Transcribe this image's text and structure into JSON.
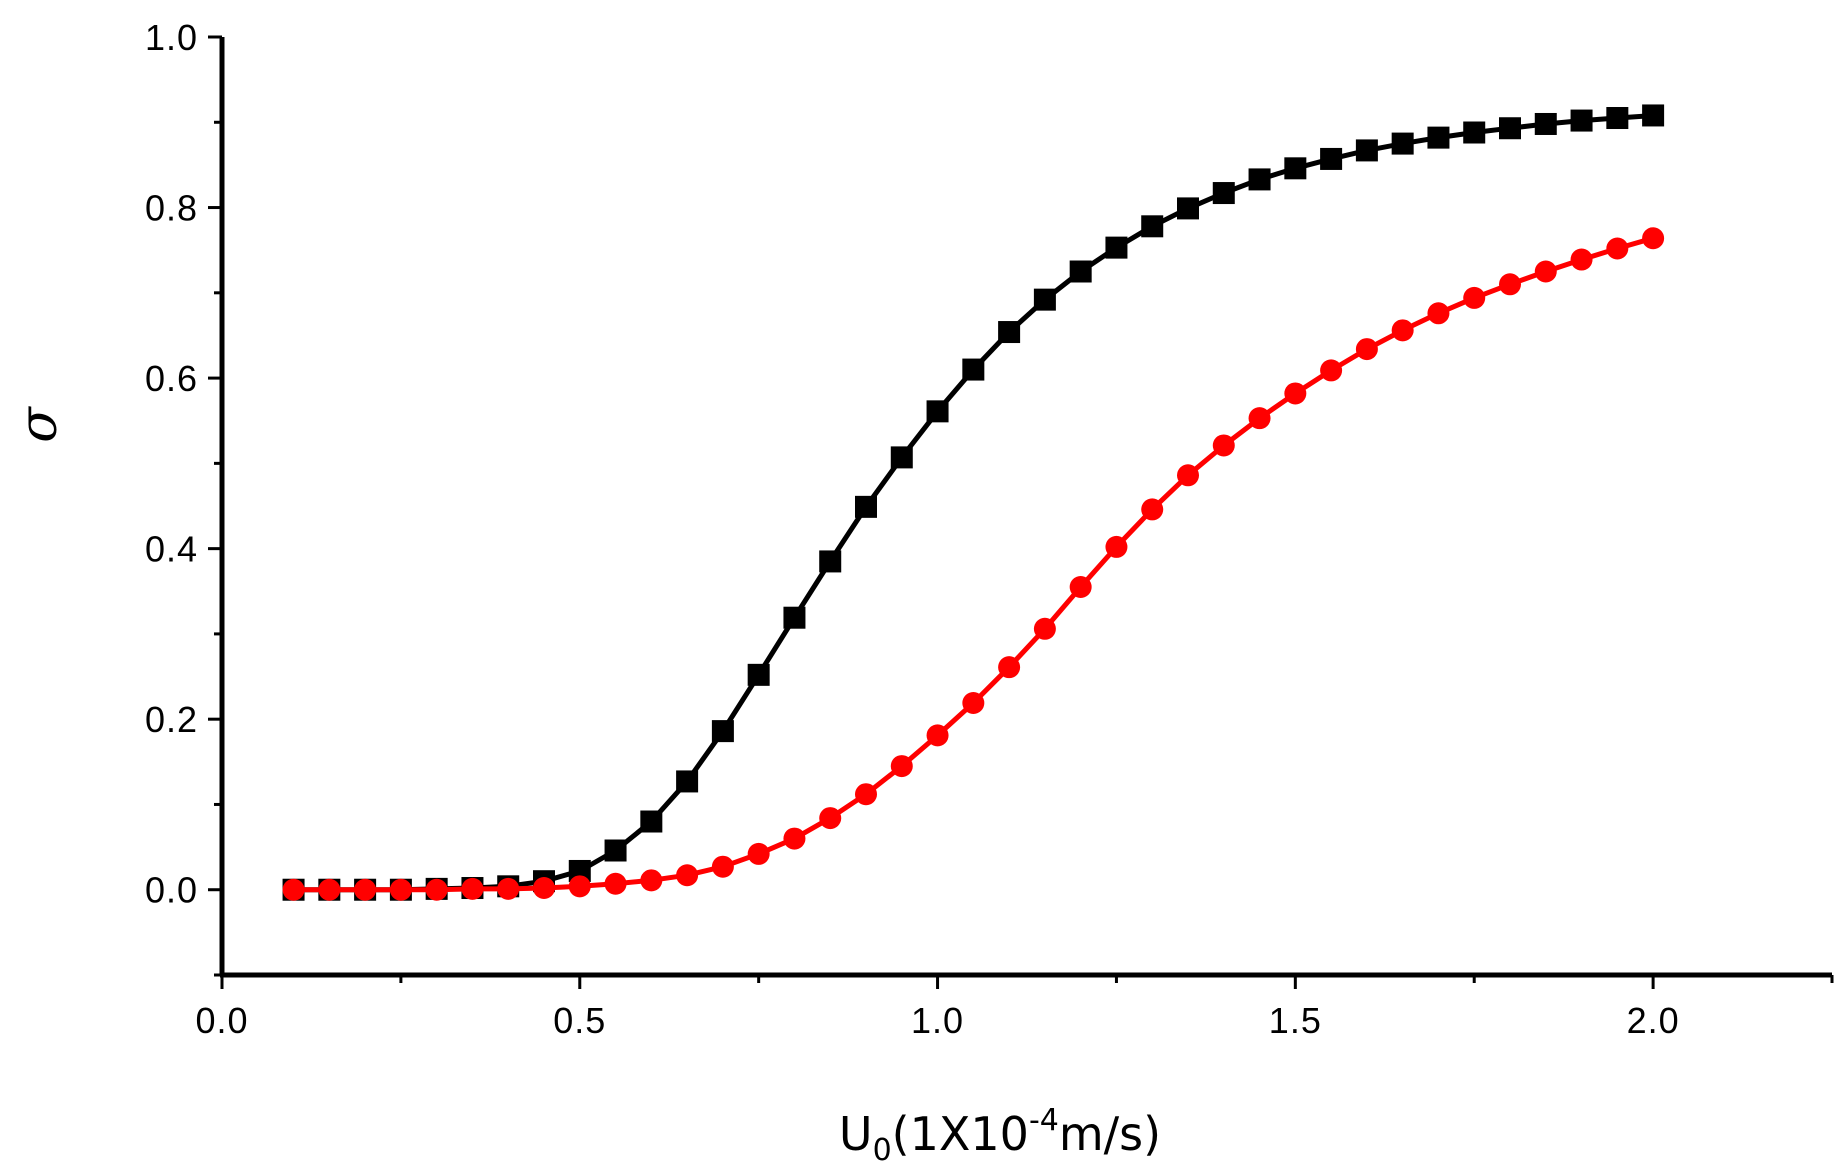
{
  "chart_data": {
    "type": "line",
    "title": "",
    "xlabel": {
      "main": "U",
      "sub": "0",
      "pre": "(1X10",
      "sup": "-4",
      "post": "m/s)"
    },
    "ylabel": "σ",
    "xlim": [
      0.0,
      2.25
    ],
    "ylim": [
      -0.1,
      1.0
    ],
    "xticks": [
      0.0,
      0.5,
      1.0,
      1.5,
      2.0
    ],
    "xtick_labels": [
      "0.0",
      "0.5",
      "1.0",
      "1.5",
      "2.0"
    ],
    "yticks": [
      0.0,
      0.2,
      0.4,
      0.6,
      0.8,
      1.0
    ],
    "ytick_labels": [
      "0.0",
      "0.2",
      "0.4",
      "0.6",
      "0.8",
      "1.0"
    ],
    "grid": false,
    "legend": "none",
    "x": [
      0.1,
      0.15,
      0.2,
      0.25,
      0.3,
      0.35,
      0.4,
      0.45,
      0.5,
      0.55,
      0.6,
      0.65,
      0.7,
      0.75,
      0.8,
      0.85,
      0.9,
      0.95,
      1.0,
      1.05,
      1.1,
      1.15,
      1.2,
      1.25,
      1.3,
      1.35,
      1.4,
      1.45,
      1.5,
      1.55,
      1.6,
      1.65,
      1.7,
      1.75,
      1.8,
      1.85,
      1.9,
      1.95,
      2.0
    ],
    "series": [
      {
        "marker": "square",
        "color": "#000000",
        "values": [
          0.0,
          0.0,
          0.0,
          0.0,
          0.001,
          0.002,
          0.004,
          0.01,
          0.022,
          0.046,
          0.08,
          0.127,
          0.186,
          0.252,
          0.319,
          0.385,
          0.449,
          0.507,
          0.561,
          0.61,
          0.654,
          0.692,
          0.725,
          0.753,
          0.778,
          0.799,
          0.817,
          0.833,
          0.846,
          0.857,
          0.867,
          0.875,
          0.882,
          0.888,
          0.893,
          0.898,
          0.902,
          0.905,
          0.908
        ]
      },
      {
        "marker": "circle",
        "color": "#ff0000",
        "values": [
          0.0,
          0.0,
          0.0,
          0.0,
          0.0,
          0.001,
          0.001,
          0.002,
          0.004,
          0.007,
          0.011,
          0.017,
          0.027,
          0.042,
          0.06,
          0.084,
          0.112,
          0.145,
          0.181,
          0.219,
          0.261,
          0.306,
          0.355,
          0.402,
          0.446,
          0.486,
          0.521,
          0.553,
          0.582,
          0.609,
          0.634,
          0.656,
          0.676,
          0.694,
          0.71,
          0.725,
          0.739,
          0.752,
          0.764
        ]
      }
    ]
  }
}
